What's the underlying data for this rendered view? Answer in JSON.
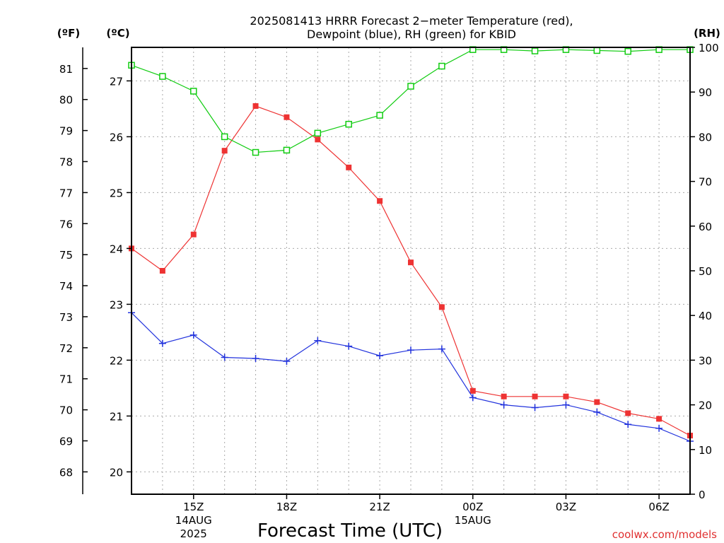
{
  "chart_data": {
    "type": "line",
    "title_line1": "2025081413 HRRR Forecast 2−meter Temperature (red),",
    "title_line2": "Dewpoint (blue), RH (green) for KBID",
    "xlabel": "Forecast Time (UTC)",
    "units": {
      "fahrenheit": "(ºF)",
      "celsius": "(ºC)",
      "rh": "(RH)"
    },
    "credit": "coolwx.com/models",
    "x_hours_utc": [
      13,
      14,
      15,
      16,
      17,
      18,
      19,
      20,
      21,
      22,
      23,
      24,
      25,
      26,
      27,
      28,
      29,
      30,
      31
    ],
    "x_ticks": [
      {
        "hour": 15,
        "label": "15Z",
        "sub1": "14AUG",
        "sub2": "2025"
      },
      {
        "hour": 18,
        "label": "18Z"
      },
      {
        "hour": 21,
        "label": "21Z"
      },
      {
        "hour": 24,
        "label": "00Z",
        "sub1": "15AUG"
      },
      {
        "hour": 27,
        "label": "03Z"
      },
      {
        "hour": 30,
        "label": "06Z"
      }
    ],
    "celsius_range": [
      19.6,
      27.6
    ],
    "celsius_ticks": [
      20,
      21,
      22,
      23,
      24,
      25,
      26,
      27
    ],
    "fahrenheit_ticks": [
      68,
      69,
      70,
      71,
      72,
      73,
      74,
      75,
      76,
      77,
      78,
      79,
      80,
      81
    ],
    "rh_range": [
      0,
      100
    ],
    "rh_ticks": [
      0,
      10,
      20,
      30,
      40,
      50,
      60,
      70,
      80,
      90,
      100
    ],
    "series": [
      {
        "key": "temperature",
        "color": "#ee3333",
        "marker": "filled-square",
        "axis": "celsius",
        "values": [
          24.0,
          23.6,
          24.25,
          25.75,
          26.55,
          26.35,
          25.95,
          25.45,
          24.85,
          23.75,
          22.95,
          21.45,
          21.35,
          21.35,
          21.35,
          21.25,
          21.05,
          20.95,
          20.65
        ]
      },
      {
        "key": "dewpoint",
        "color": "#2233dd",
        "marker": "plus",
        "axis": "celsius",
        "values": [
          22.85,
          22.3,
          22.45,
          22.05,
          22.03,
          21.98,
          22.35,
          22.25,
          22.08,
          22.18,
          22.2,
          21.33,
          21.2,
          21.15,
          21.2,
          21.07,
          20.85,
          20.78,
          20.55
        ]
      },
      {
        "key": "rh",
        "color": "#11cc11",
        "marker": "open-square",
        "axis": "rh",
        "values": [
          96,
          93.5,
          90.2,
          80.0,
          76.5,
          77.0,
          80.8,
          82.8,
          84.8,
          91.3,
          95.8,
          99.5,
          99.5,
          99.2,
          99.5,
          99.3,
          99.1,
          99.5,
          99.5
        ]
      }
    ]
  }
}
